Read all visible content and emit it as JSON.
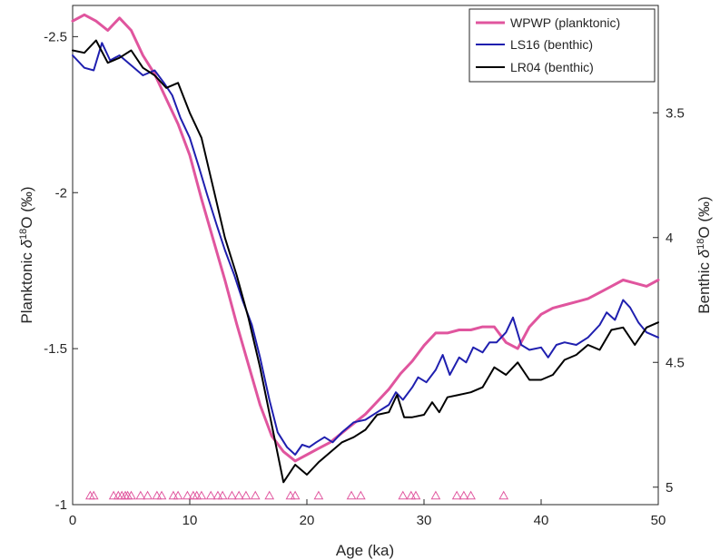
{
  "chart_data": {
    "type": "line",
    "xlabel": "Age (ka)",
    "ylabel_left": {
      "prefix": "Planktonic ",
      "symbol": "δ",
      "sup": "18",
      "suffix": "O (‰)"
    },
    "ylabel_right": {
      "prefix": "Benthic ",
      "symbol": "δ",
      "sup": "18",
      "suffix": "O (‰)"
    },
    "xlim": [
      0,
      50
    ],
    "x_ticks": [
      "0",
      "10",
      "20",
      "30",
      "40",
      "50"
    ],
    "y_left_lim": [
      -2.6,
      -1.0
    ],
    "y_left_reversed": true,
    "y_left_ticks": [
      "-2.5",
      "-2",
      "-1.5",
      "-1"
    ],
    "y_right_lim": [
      3.07,
      5.07
    ],
    "y_right_reversed": false,
    "y_right_ticks": [
      "3.5",
      "4",
      "4.5",
      "5"
    ],
    "grid": false,
    "legend_position": "top-right",
    "series": [
      {
        "name": "WPWP (planktonic)",
        "axis": "left",
        "color": "#e0559e",
        "points": [
          [
            0,
            -2.55
          ],
          [
            1,
            -2.57
          ],
          [
            2,
            -2.55
          ],
          [
            3,
            -2.52
          ],
          [
            4,
            -2.56
          ],
          [
            5,
            -2.52
          ],
          [
            6,
            -2.44
          ],
          [
            7,
            -2.38
          ],
          [
            8,
            -2.3
          ],
          [
            9,
            -2.22
          ],
          [
            10,
            -2.12
          ],
          [
            11,
            -1.98
          ],
          [
            12,
            -1.85
          ],
          [
            13,
            -1.72
          ],
          [
            14,
            -1.58
          ],
          [
            15,
            -1.45
          ],
          [
            16,
            -1.32
          ],
          [
            17,
            -1.22
          ],
          [
            18,
            -1.17
          ],
          [
            19,
            -1.14
          ],
          [
            20,
            -1.16
          ],
          [
            21,
            -1.18
          ],
          [
            22,
            -1.2
          ],
          [
            23,
            -1.23
          ],
          [
            24,
            -1.26
          ],
          [
            25,
            -1.29
          ],
          [
            26,
            -1.33
          ],
          [
            27,
            -1.37
          ],
          [
            28,
            -1.42
          ],
          [
            29,
            -1.46
          ],
          [
            30,
            -1.51
          ],
          [
            31,
            -1.55
          ],
          [
            32,
            -1.55
          ],
          [
            33,
            -1.56
          ],
          [
            34,
            -1.56
          ],
          [
            35,
            -1.57
          ],
          [
            36,
            -1.57
          ],
          [
            37,
            -1.52
          ],
          [
            38,
            -1.5
          ],
          [
            39,
            -1.57
          ],
          [
            40,
            -1.61
          ],
          [
            41,
            -1.63
          ],
          [
            42,
            -1.64
          ],
          [
            43,
            -1.65
          ],
          [
            44,
            -1.66
          ],
          [
            45,
            -1.68
          ],
          [
            46,
            -1.7
          ],
          [
            47,
            -1.72
          ],
          [
            48,
            -1.71
          ],
          [
            49,
            -1.7
          ],
          [
            50,
            -1.72
          ]
        ]
      },
      {
        "name": "LS16 (benthic)",
        "axis": "right",
        "color": "#1f1faf",
        "points": [
          [
            0,
            3.27
          ],
          [
            1,
            3.32
          ],
          [
            1.8,
            3.33
          ],
          [
            2.5,
            3.22
          ],
          [
            3.2,
            3.29
          ],
          [
            4,
            3.27
          ],
          [
            5,
            3.31
          ],
          [
            6,
            3.35
          ],
          [
            7,
            3.33
          ],
          [
            7.8,
            3.38
          ],
          [
            8.5,
            3.43
          ],
          [
            9.2,
            3.52
          ],
          [
            10,
            3.6
          ],
          [
            10.8,
            3.72
          ],
          [
            11.5,
            3.83
          ],
          [
            12.3,
            3.95
          ],
          [
            13,
            4.05
          ],
          [
            13.8,
            4.15
          ],
          [
            14.5,
            4.25
          ],
          [
            15.3,
            4.35
          ],
          [
            16,
            4.48
          ],
          [
            16.8,
            4.65
          ],
          [
            17.5,
            4.78
          ],
          [
            18.3,
            4.84
          ],
          [
            19,
            4.87
          ],
          [
            19.6,
            4.83
          ],
          [
            20.2,
            4.84
          ],
          [
            20.8,
            4.82
          ],
          [
            21.5,
            4.8
          ],
          [
            22.2,
            4.82
          ],
          [
            23,
            4.78
          ],
          [
            24,
            4.74
          ],
          [
            25,
            4.73
          ],
          [
            26,
            4.7
          ],
          [
            27,
            4.67
          ],
          [
            27.6,
            4.62
          ],
          [
            28.2,
            4.65
          ],
          [
            29,
            4.6
          ],
          [
            29.5,
            4.56
          ],
          [
            30.2,
            4.58
          ],
          [
            31,
            4.53
          ],
          [
            31.6,
            4.47
          ],
          [
            32.2,
            4.55
          ],
          [
            33,
            4.48
          ],
          [
            33.6,
            4.5
          ],
          [
            34.2,
            4.44
          ],
          [
            35,
            4.46
          ],
          [
            35.6,
            4.42
          ],
          [
            36.2,
            4.42
          ],
          [
            37,
            4.38
          ],
          [
            37.6,
            4.32
          ],
          [
            38.3,
            4.43
          ],
          [
            39,
            4.45
          ],
          [
            40,
            4.44
          ],
          [
            40.6,
            4.48
          ],
          [
            41.3,
            4.43
          ],
          [
            42,
            4.42
          ],
          [
            43,
            4.43
          ],
          [
            44,
            4.4
          ],
          [
            45,
            4.35
          ],
          [
            45.6,
            4.3
          ],
          [
            46.3,
            4.33
          ],
          [
            47,
            4.25
          ],
          [
            47.6,
            4.28
          ],
          [
            48.3,
            4.34
          ],
          [
            49,
            4.38
          ],
          [
            50,
            4.4
          ]
        ]
      },
      {
        "name": "LR04 (benthic)",
        "axis": "right",
        "color": "#000000",
        "points": [
          [
            0,
            3.25
          ],
          [
            1,
            3.26
          ],
          [
            2,
            3.21
          ],
          [
            3,
            3.3
          ],
          [
            4,
            3.28
          ],
          [
            5,
            3.25
          ],
          [
            6,
            3.32
          ],
          [
            7,
            3.35
          ],
          [
            8,
            3.4
          ],
          [
            9,
            3.38
          ],
          [
            10,
            3.5
          ],
          [
            11,
            3.6
          ],
          [
            12,
            3.8
          ],
          [
            13,
            4.0
          ],
          [
            14,
            4.15
          ],
          [
            15,
            4.32
          ],
          [
            16,
            4.52
          ],
          [
            17,
            4.75
          ],
          [
            18,
            4.98
          ],
          [
            19,
            4.91
          ],
          [
            20,
            4.95
          ],
          [
            21,
            4.9
          ],
          [
            22,
            4.86
          ],
          [
            23,
            4.82
          ],
          [
            24,
            4.8
          ],
          [
            25,
            4.77
          ],
          [
            26,
            4.71
          ],
          [
            27,
            4.7
          ],
          [
            27.7,
            4.63
          ],
          [
            28.3,
            4.72
          ],
          [
            29,
            4.72
          ],
          [
            30,
            4.71
          ],
          [
            30.7,
            4.66
          ],
          [
            31.3,
            4.7
          ],
          [
            32,
            4.64
          ],
          [
            33,
            4.63
          ],
          [
            34,
            4.62
          ],
          [
            35,
            4.6
          ],
          [
            36,
            4.52
          ],
          [
            37,
            4.55
          ],
          [
            38,
            4.5
          ],
          [
            39,
            4.57
          ],
          [
            40,
            4.57
          ],
          [
            41,
            4.55
          ],
          [
            42,
            4.49
          ],
          [
            43,
            4.47
          ],
          [
            44,
            4.43
          ],
          [
            45,
            4.45
          ],
          [
            46,
            4.37
          ],
          [
            47,
            4.36
          ],
          [
            48,
            4.43
          ],
          [
            49,
            4.36
          ],
          [
            50,
            4.34
          ]
        ]
      }
    ],
    "markers": {
      "shape": "triangle-up",
      "color": "#e0559e",
      "axis": "left",
      "y": -1.03,
      "x": [
        1.5,
        1.8,
        3.5,
        3.9,
        4.2,
        4.5,
        4.7,
        5.0,
        5.8,
        6.4,
        7.2,
        7.6,
        8.6,
        9.0,
        9.8,
        10.3,
        10.6,
        11.0,
        11.8,
        12.4,
        12.8,
        13.6,
        14.2,
        14.8,
        15.6,
        16.8,
        18.6,
        19.0,
        21.0,
        23.8,
        24.6,
        28.2,
        28.9,
        29.3,
        31.0,
        32.8,
        33.4,
        34.0,
        36.8
      ]
    }
  }
}
